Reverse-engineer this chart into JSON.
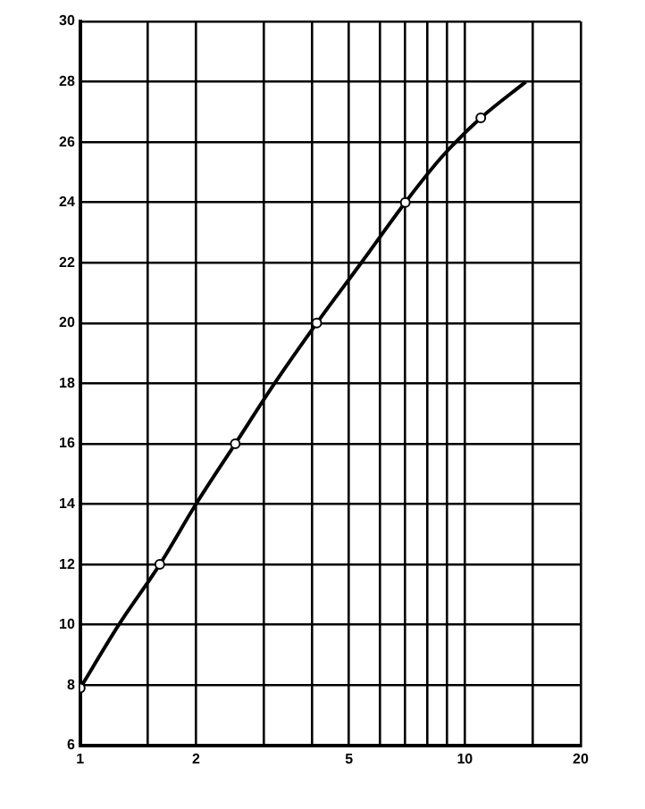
{
  "chart_data": {
    "type": "line",
    "log": "x",
    "grid": true,
    "legend": false,
    "xlim": [
      1,
      20
    ],
    "xticks": [
      1,
      {
        "value": 1.5,
        "label": null
      },
      2,
      {
        "value": 3,
        "label": null
      },
      {
        "value": 4,
        "label": null
      },
      5,
      {
        "value": 6,
        "label": null
      },
      {
        "value": 7,
        "label": null
      },
      {
        "value": 8,
        "label": null
      },
      {
        "value": 9,
        "label": null
      },
      10,
      {
        "value": 15,
        "label": null
      },
      20
    ],
    "ylim": [
      6,
      30
    ],
    "yticks": [
      6,
      8,
      10,
      12,
      14,
      16,
      18,
      20,
      22,
      24,
      26,
      28,
      30
    ],
    "series": [
      {
        "color": "#000000",
        "marker": "none",
        "x": [
          1,
          1.26,
          1.61,
          2,
          2.53,
          3.2,
          4.12,
          5.38,
          7,
          8.7,
          11,
          14.4
        ],
        "values": [
          7.9,
          10,
          12,
          14,
          16,
          18,
          20,
          22,
          24,
          25.5,
          26.8,
          28
        ]
      },
      {
        "type": "scatter",
        "color": "#000000",
        "marker": "circle",
        "x": [
          1,
          1.61,
          2.53,
          4.12,
          7,
          11
        ],
        "values": [
          7.9,
          12,
          16,
          20,
          24,
          26.8
        ]
      }
    ]
  }
}
